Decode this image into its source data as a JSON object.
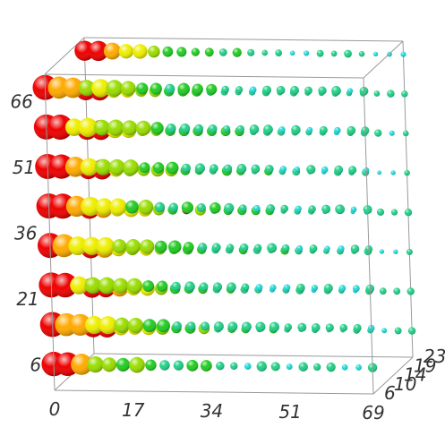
{
  "chart_data": {
    "type": "scatter",
    "subtype": "3d-bubble-grid",
    "title": "",
    "xlabel": "",
    "ylabel": "",
    "zlabel": "",
    "x_ticks": [
      "0",
      "17",
      "34",
      "51",
      "69"
    ],
    "y_ticks": [
      "6",
      "21",
      "36",
      "51",
      "66"
    ],
    "z_ticks": [
      "6",
      "10",
      "14",
      "19",
      "23"
    ],
    "xlim": [
      0,
      69
    ],
    "ylim": [
      0,
      72
    ],
    "zlim": [
      4,
      23
    ],
    "x_step": 3,
    "y_values": [
      6,
      15,
      24,
      33,
      42,
      51,
      60,
      69
    ],
    "z_values": [
      4,
      23
    ],
    "color_scale": [
      "#22dada",
      "#22d088",
      "#22cc22",
      "#99dd00",
      "#eeee00",
      "#ffaa00",
      "#ee0000"
    ],
    "highlight": {
      "x": 21,
      "y": 33,
      "z": 4,
      "color": "#dd0000"
    },
    "legend": "none",
    "grid": false
  }
}
